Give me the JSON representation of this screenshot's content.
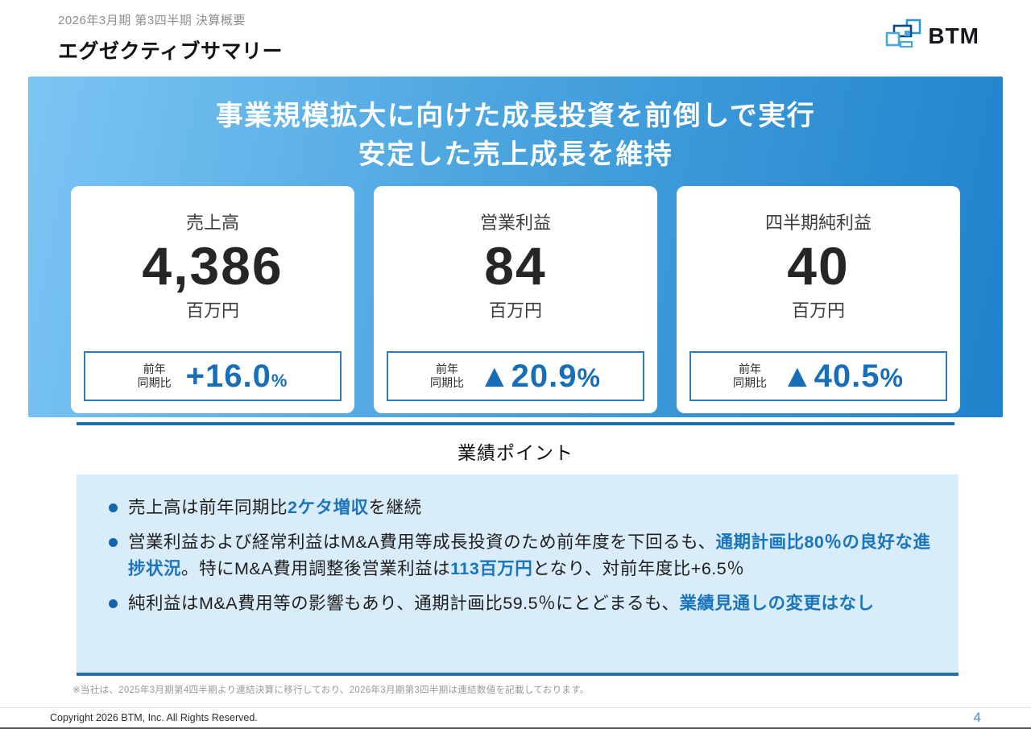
{
  "header": {
    "subtitle": "2026年3月期  第3四半期  決算概要",
    "title": "エグゼクティブサマリー",
    "logo_text": "BTM"
  },
  "banner": {
    "line1": "事業規模拡大に向けた成長投資を前倒しで実行",
    "line2": "安定した売上成長を維持"
  },
  "cards": [
    {
      "label": "売上高",
      "value": "4,386",
      "unit": "百万円",
      "yoy_label": "前年\n同期比",
      "change": "+16.0",
      "percent": "%"
    },
    {
      "label": "営業利益",
      "value": "84",
      "unit": "百万円",
      "yoy_label": "前年\n同期比",
      "change": "▲20.9",
      "percent": "%"
    },
    {
      "label": "四半期純利益",
      "value": "40",
      "unit": "百万円",
      "yoy_label": "前年\n同期比",
      "change": "▲40.5",
      "percent": "%"
    }
  ],
  "points": {
    "title": "業績ポイント",
    "bullets": [
      {
        "segments": [
          {
            "text": "売上高は前年同期比"
          },
          {
            "text": "2ケタ増収",
            "highlight": true
          },
          {
            "text": "を継続"
          }
        ]
      },
      {
        "segments": [
          {
            "text": "営業利益および経常利益はM&A費用等成長投資のため前年度を下回るも、"
          },
          {
            "text": "通期計画比80％の良好な進捗状況",
            "highlight": true
          },
          {
            "text": "。特にM&A費用調整後営業利益は"
          },
          {
            "text": "113百万円",
            "highlight": true
          },
          {
            "text": "となり、対前年度比+6.5％"
          }
        ]
      },
      {
        "segments": [
          {
            "text": "純利益はM&A費用等の影響もあり、通期計画比59.5％にとどまるも、"
          },
          {
            "text": "業績見通しの変更はなし",
            "highlight": true
          }
        ]
      }
    ]
  },
  "footnote": "※当社は、2025年3月期第4四半期より連結決算に移行しており、2026年3月期第3四半期は連結数値を記載しております。",
  "footer": {
    "copyright": "Copyright 2026 BTM, Inc. All Rights Reserved.",
    "page": "4"
  },
  "colors": {
    "accent_blue": "#1a75bc",
    "banner_gradient_light": "#7cc5f4",
    "banner_gradient_dark": "#1f82cc",
    "points_box_bg": "#d9ecf9",
    "underline": "#1d6fad"
  }
}
